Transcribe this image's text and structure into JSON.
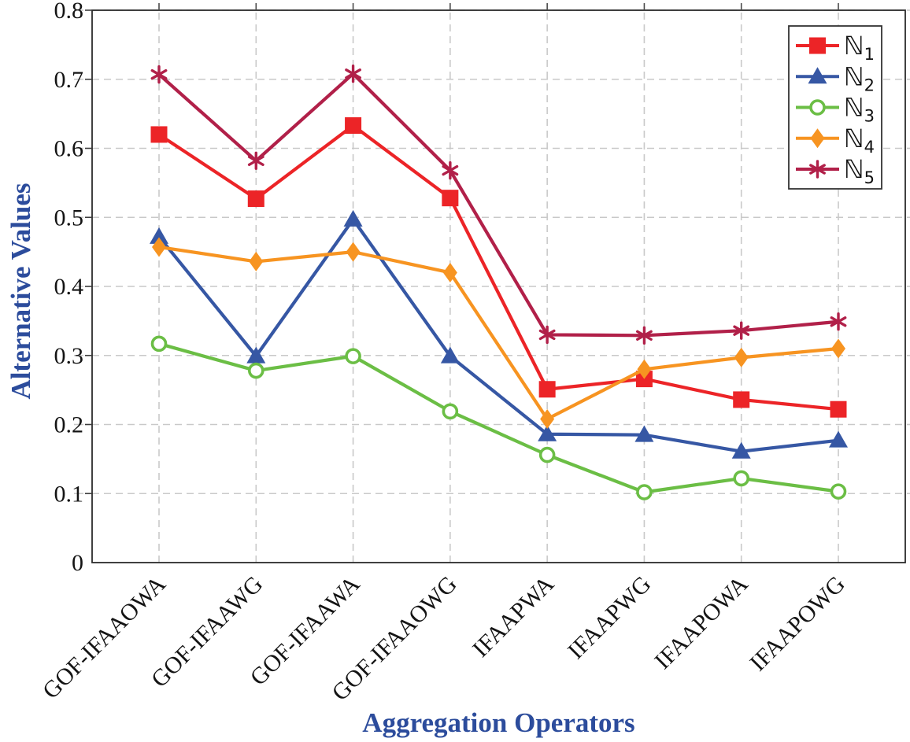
{
  "chart_data": {
    "type": "line",
    "title": "",
    "xlabel": "Aggregation Operators",
    "ylabel": "Alternative Values",
    "categories": [
      "GOF-IFAAOWA",
      "GOF-IFAAWG",
      "GOF-IFAAWA",
      "GOF-IFAAOWG",
      "IFAAPWA",
      "IFAAPWG",
      "IFAAPOWA",
      "IFAAPOWG"
    ],
    "series": [
      {
        "name": "N1",
        "label_base": "ℕ",
        "label_sub": "1",
        "marker": "square",
        "color": "#EC2427",
        "values": [
          0.62,
          0.527,
          0.633,
          0.528,
          0.251,
          0.266,
          0.236,
          0.222
        ]
      },
      {
        "name": "N2",
        "label_base": "ℕ",
        "label_sub": "2",
        "marker": "triangle",
        "color": "#3657A4",
        "values": [
          0.472,
          0.299,
          0.497,
          0.299,
          0.186,
          0.185,
          0.161,
          0.177
        ]
      },
      {
        "name": "N3",
        "label_base": "ℕ",
        "label_sub": "3",
        "marker": "circle-open",
        "color": "#6BBE45",
        "values": [
          0.317,
          0.278,
          0.299,
          0.219,
          0.156,
          0.102,
          0.122,
          0.103
        ]
      },
      {
        "name": "N4",
        "label_base": "ℕ",
        "label_sub": "4",
        "marker": "diamond",
        "color": "#F79421",
        "values": [
          0.457,
          0.436,
          0.45,
          0.42,
          0.208,
          0.28,
          0.297,
          0.31
        ]
      },
      {
        "name": "N5",
        "label_base": "ℕ",
        "label_sub": "5",
        "marker": "star",
        "color": "#B12049",
        "values": [
          0.707,
          0.582,
          0.708,
          0.568,
          0.33,
          0.329,
          0.336,
          0.349
        ]
      }
    ],
    "ylim": [
      0,
      0.8
    ],
    "ytick_step": 0.1,
    "ytick_labels": [
      "0",
      "0.1",
      "0.2",
      "0.3",
      "0.4",
      "0.5",
      "0.6",
      "0.7",
      "0.8"
    ],
    "grid": true,
    "legend_position": "top-right"
  },
  "styles": {
    "axis_title_color": "#2C4C9C",
    "grid_color": "#c9c9c9",
    "frame_color": "#2b2b2b",
    "tick_text_color": "#141414",
    "legend_border_color": "#333333",
    "legend_bg_color": "#ffffff"
  }
}
